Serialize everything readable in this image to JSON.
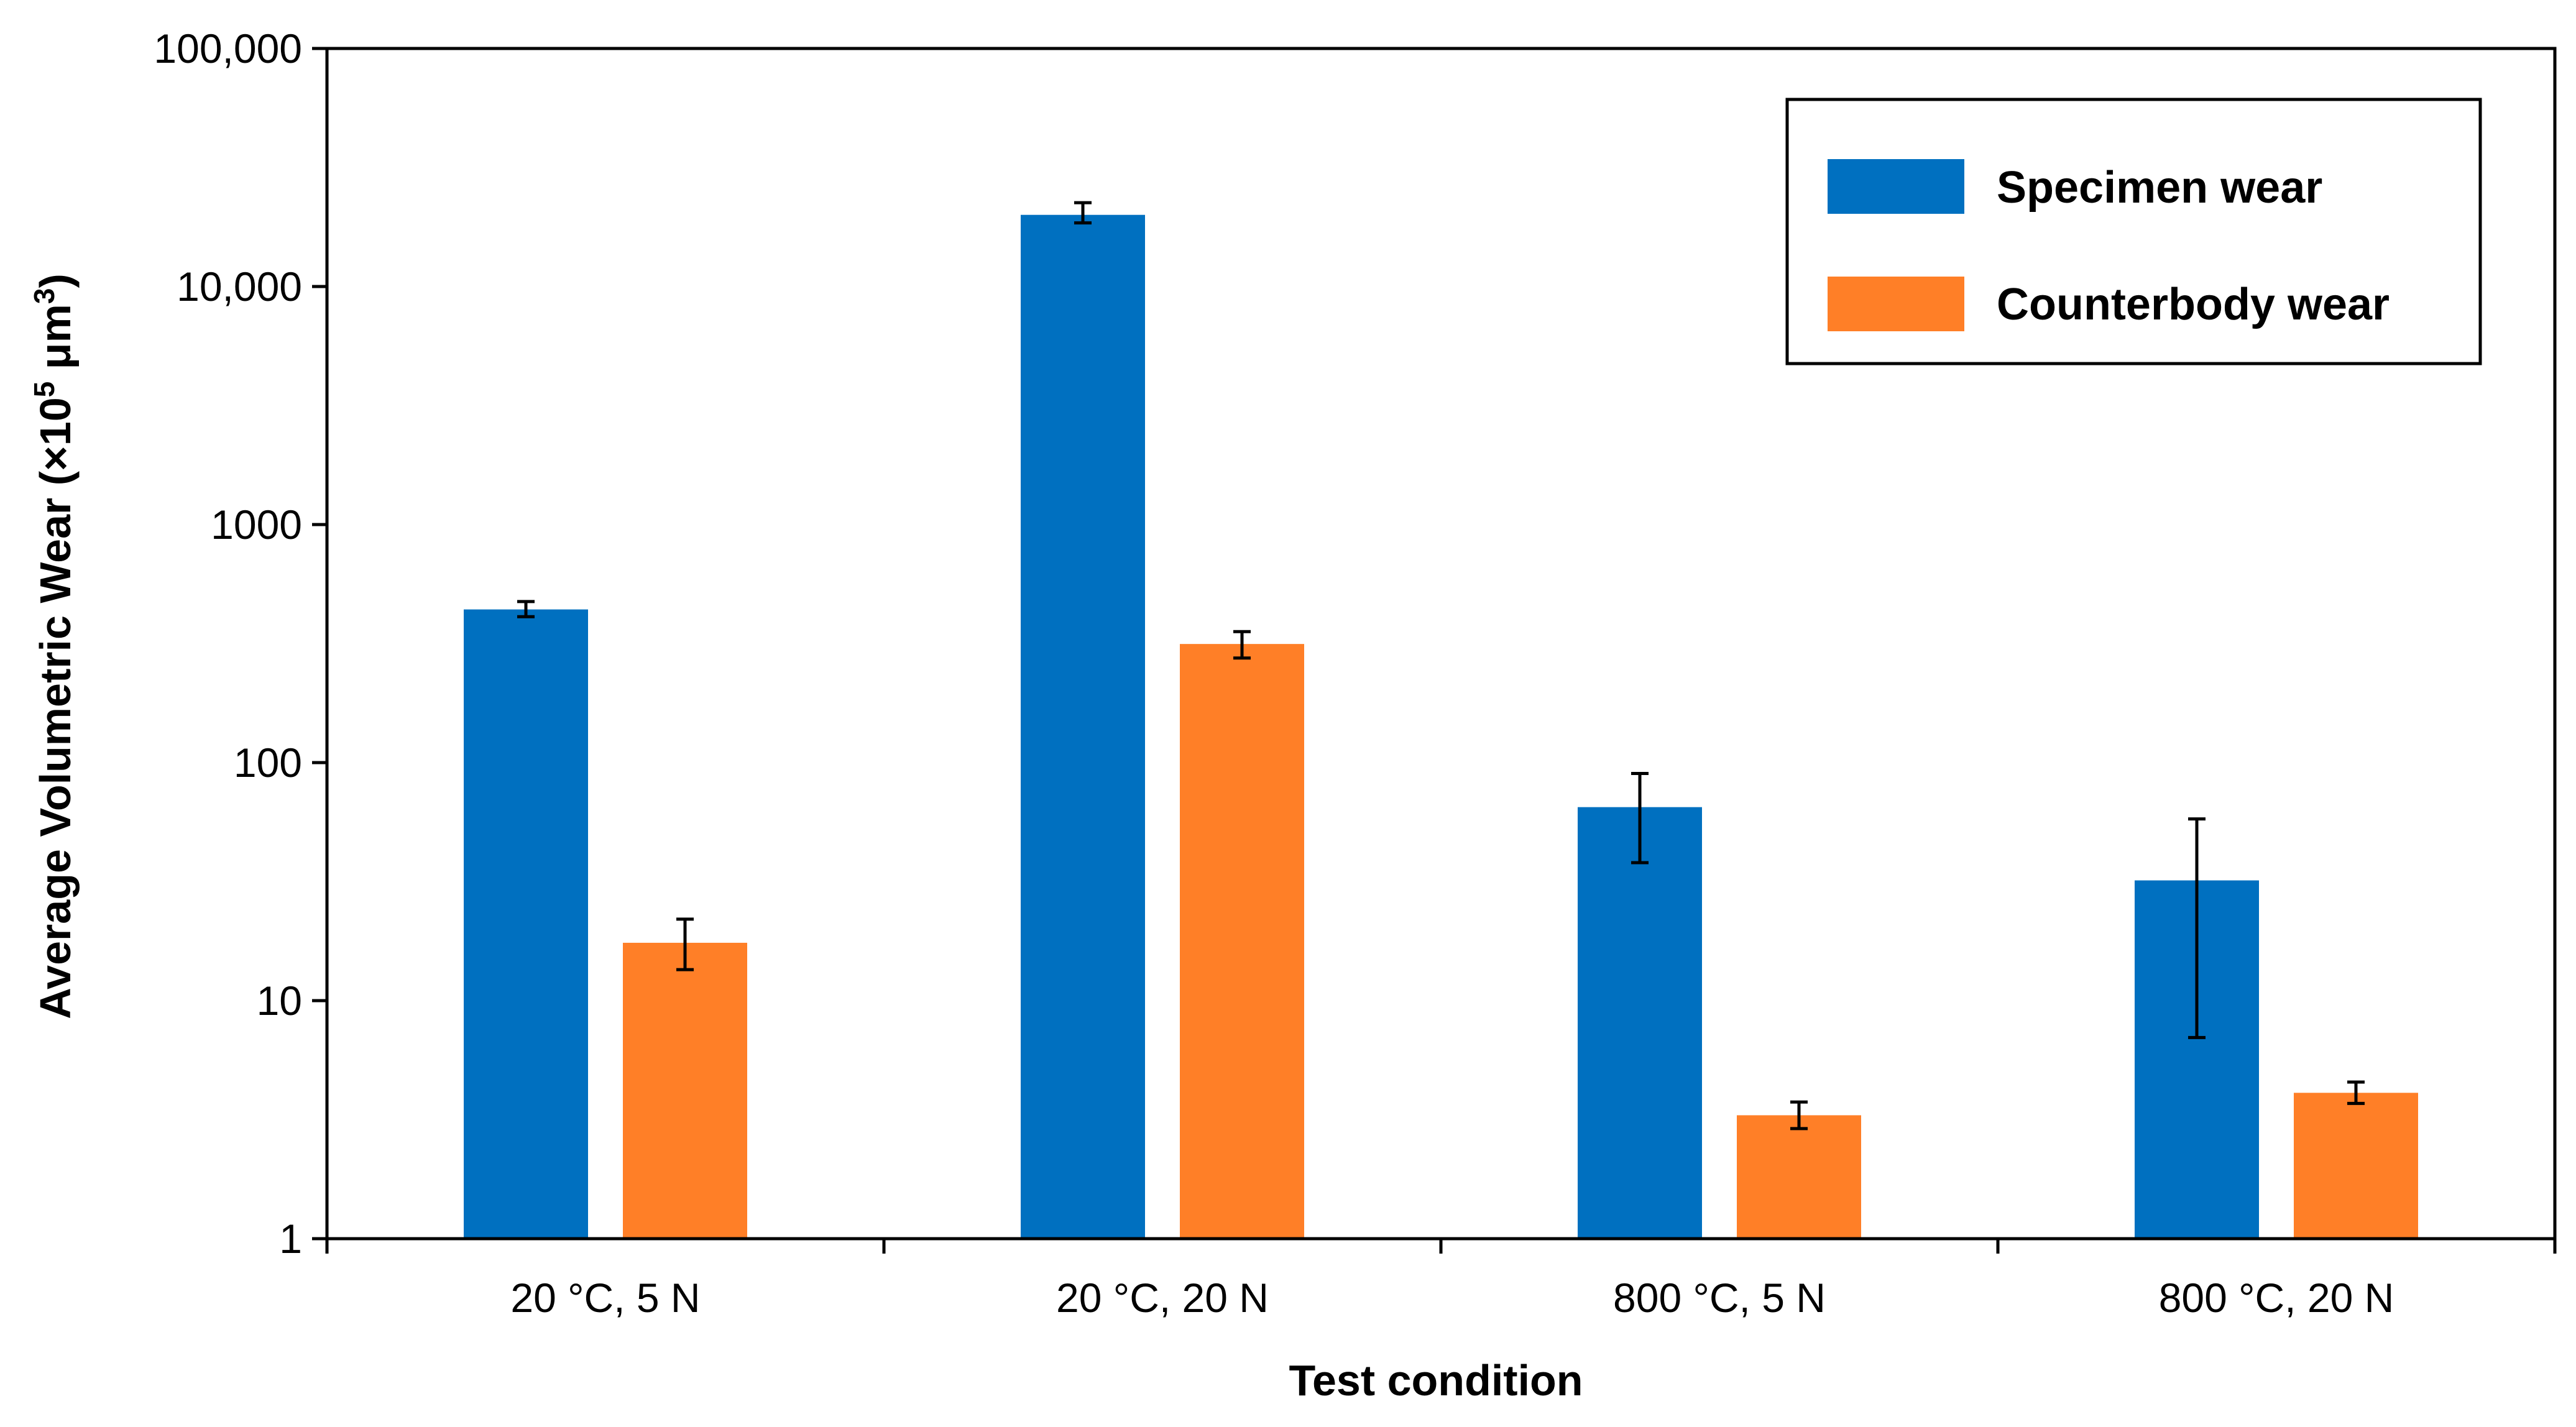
{
  "chart_data": {
    "type": "bar",
    "title": "",
    "xlabel": "Test condition",
    "ylabel": "Average Volumetric Wear (×10⁵ μm³)",
    "yscale": "log",
    "ylim": [
      1,
      100000
    ],
    "yticks": [
      1,
      10,
      100,
      1000,
      10000,
      100000
    ],
    "ytick_labels": [
      "1",
      "10",
      "100",
      "1000",
      "10,000",
      "100,000"
    ],
    "categories": [
      "20 °C, 5 N",
      "20 °C, 20 N",
      "800 °C, 5 N",
      "800 °C, 20 N"
    ],
    "series": [
      {
        "name": "Specimen wear",
        "color": "#0070c0",
        "values": [
          440,
          20000,
          65,
          32
        ],
        "error_low": [
          410,
          18500,
          38,
          7
        ],
        "error_high": [
          475,
          22500,
          90,
          58
        ]
      },
      {
        "name": "Counterbody wear",
        "color": "#ff7f27",
        "values": [
          17.5,
          315,
          3.3,
          4.1
        ],
        "error_low": [
          13.5,
          275,
          2.9,
          3.7
        ],
        "error_high": [
          22,
          355,
          3.75,
          4.55
        ]
      }
    ],
    "legend": {
      "position": "top-right",
      "entries": [
        "Specimen wear",
        "Counterbody wear"
      ]
    },
    "grid": false
  }
}
